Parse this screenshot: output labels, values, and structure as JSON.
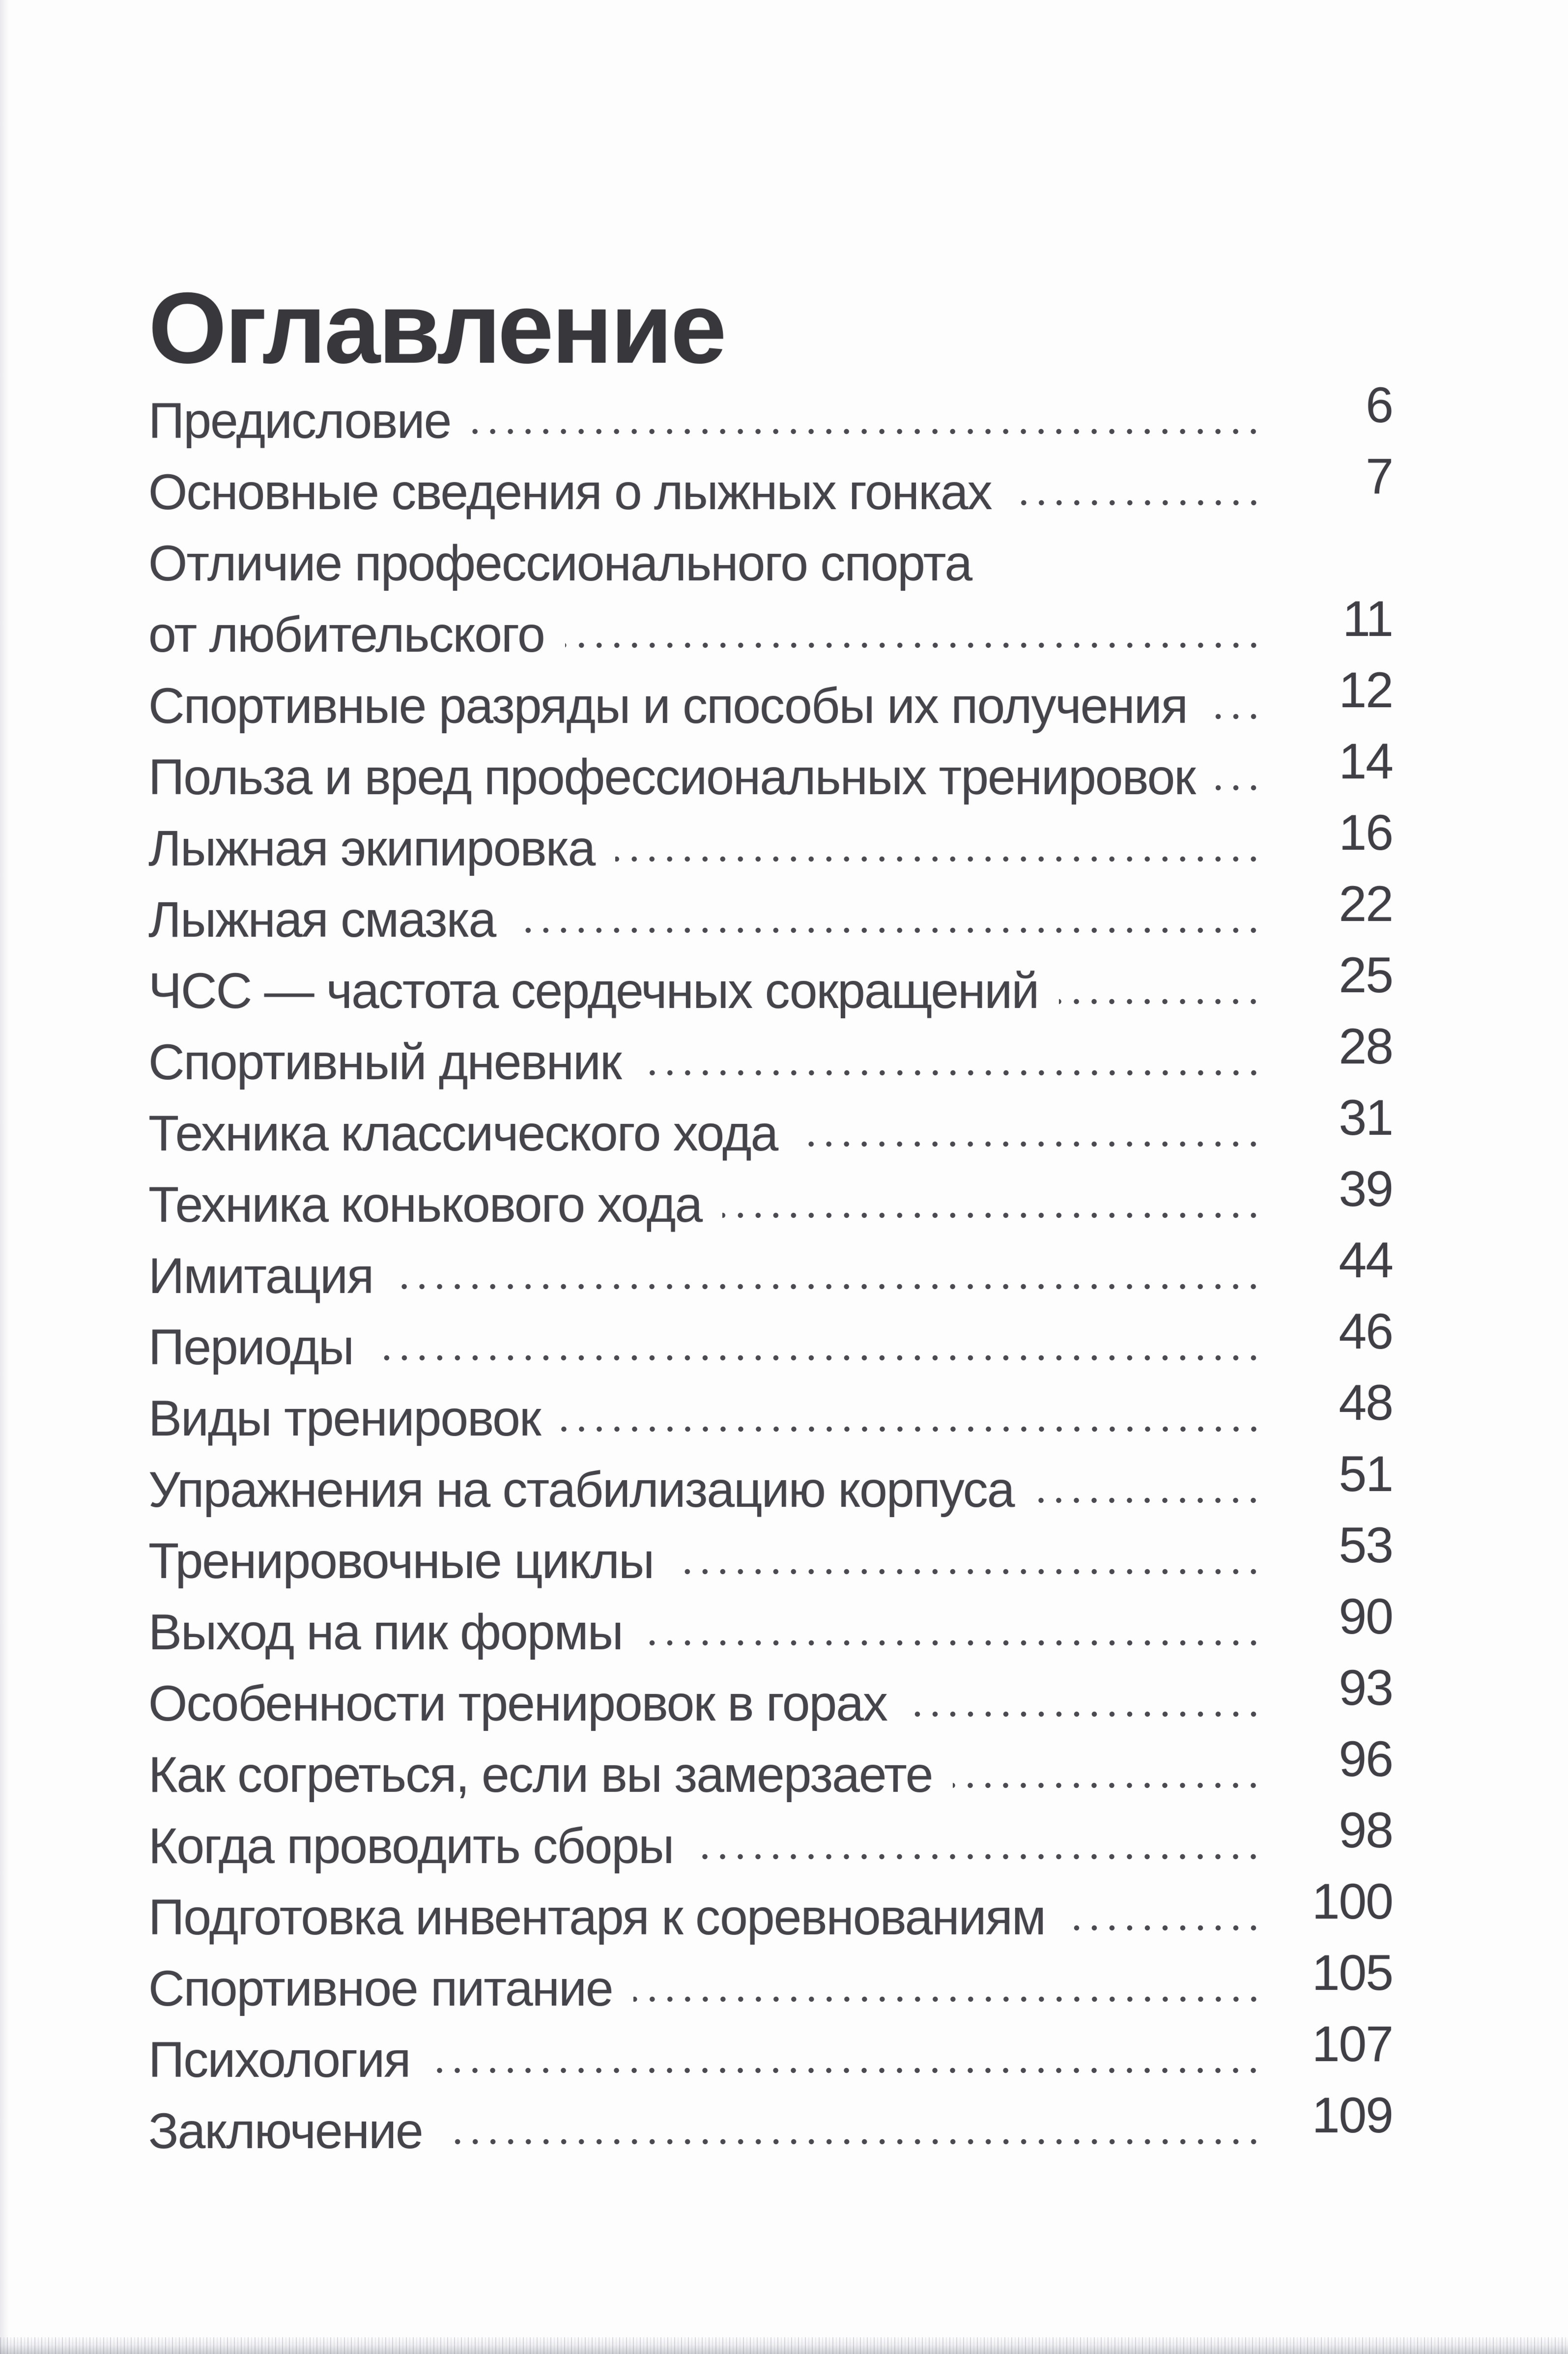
{
  "page": {
    "title": "Оглавление",
    "colors": {
      "paper": "#fdfdfe",
      "title_ink": "#38383c",
      "ink": "#44444a",
      "num_ink": "#3f3f45",
      "dots": "#4a4a50"
    },
    "toc": {
      "entries": [
        {
          "label": "Предисловие",
          "page": "6"
        },
        {
          "label": "Основные сведения о лыжных гонках",
          "page": "7"
        },
        {
          "label": "Отличие профессионального спорта",
          "page": ""
        },
        {
          "label": "от любительского",
          "page": "11"
        },
        {
          "label": "Спортивные разряды и способы их получения",
          "page": "12"
        },
        {
          "label": "Польза и вред профессиональных тренировок",
          "page": "14"
        },
        {
          "label": "Лыжная экипировка",
          "page": "16"
        },
        {
          "label": "Лыжная смазка",
          "page": "22"
        },
        {
          "label": "ЧСС — частота сердечных сокращений",
          "page": "25"
        },
        {
          "label": "Спортивный дневник",
          "page": "28"
        },
        {
          "label": "Техника классического хода",
          "page": "31"
        },
        {
          "label": "Техника конькового хода",
          "page": "39"
        },
        {
          "label": "Имитация",
          "page": "44"
        },
        {
          "label": "Периоды",
          "page": "46"
        },
        {
          "label": "Виды тренировок",
          "page": "48"
        },
        {
          "label": "Упражнения на стабилизацию корпуса",
          "page": "51"
        },
        {
          "label": "Тренировочные циклы",
          "page": "53"
        },
        {
          "label": "Выход на пик формы",
          "page": "90"
        },
        {
          "label": "Особенности тренировок в горах",
          "page": "93"
        },
        {
          "label": "Как согреться, если вы замерзаете",
          "page": "96"
        },
        {
          "label": "Когда проводить сборы",
          "page": "98"
        },
        {
          "label": "Подготовка инвентаря к соревнованиям",
          "page": "100"
        },
        {
          "label": "Спортивное питание",
          "page": "105"
        },
        {
          "label": "Психология",
          "page": "107"
        },
        {
          "label": "Заключение",
          "page": "109"
        }
      ]
    }
  }
}
